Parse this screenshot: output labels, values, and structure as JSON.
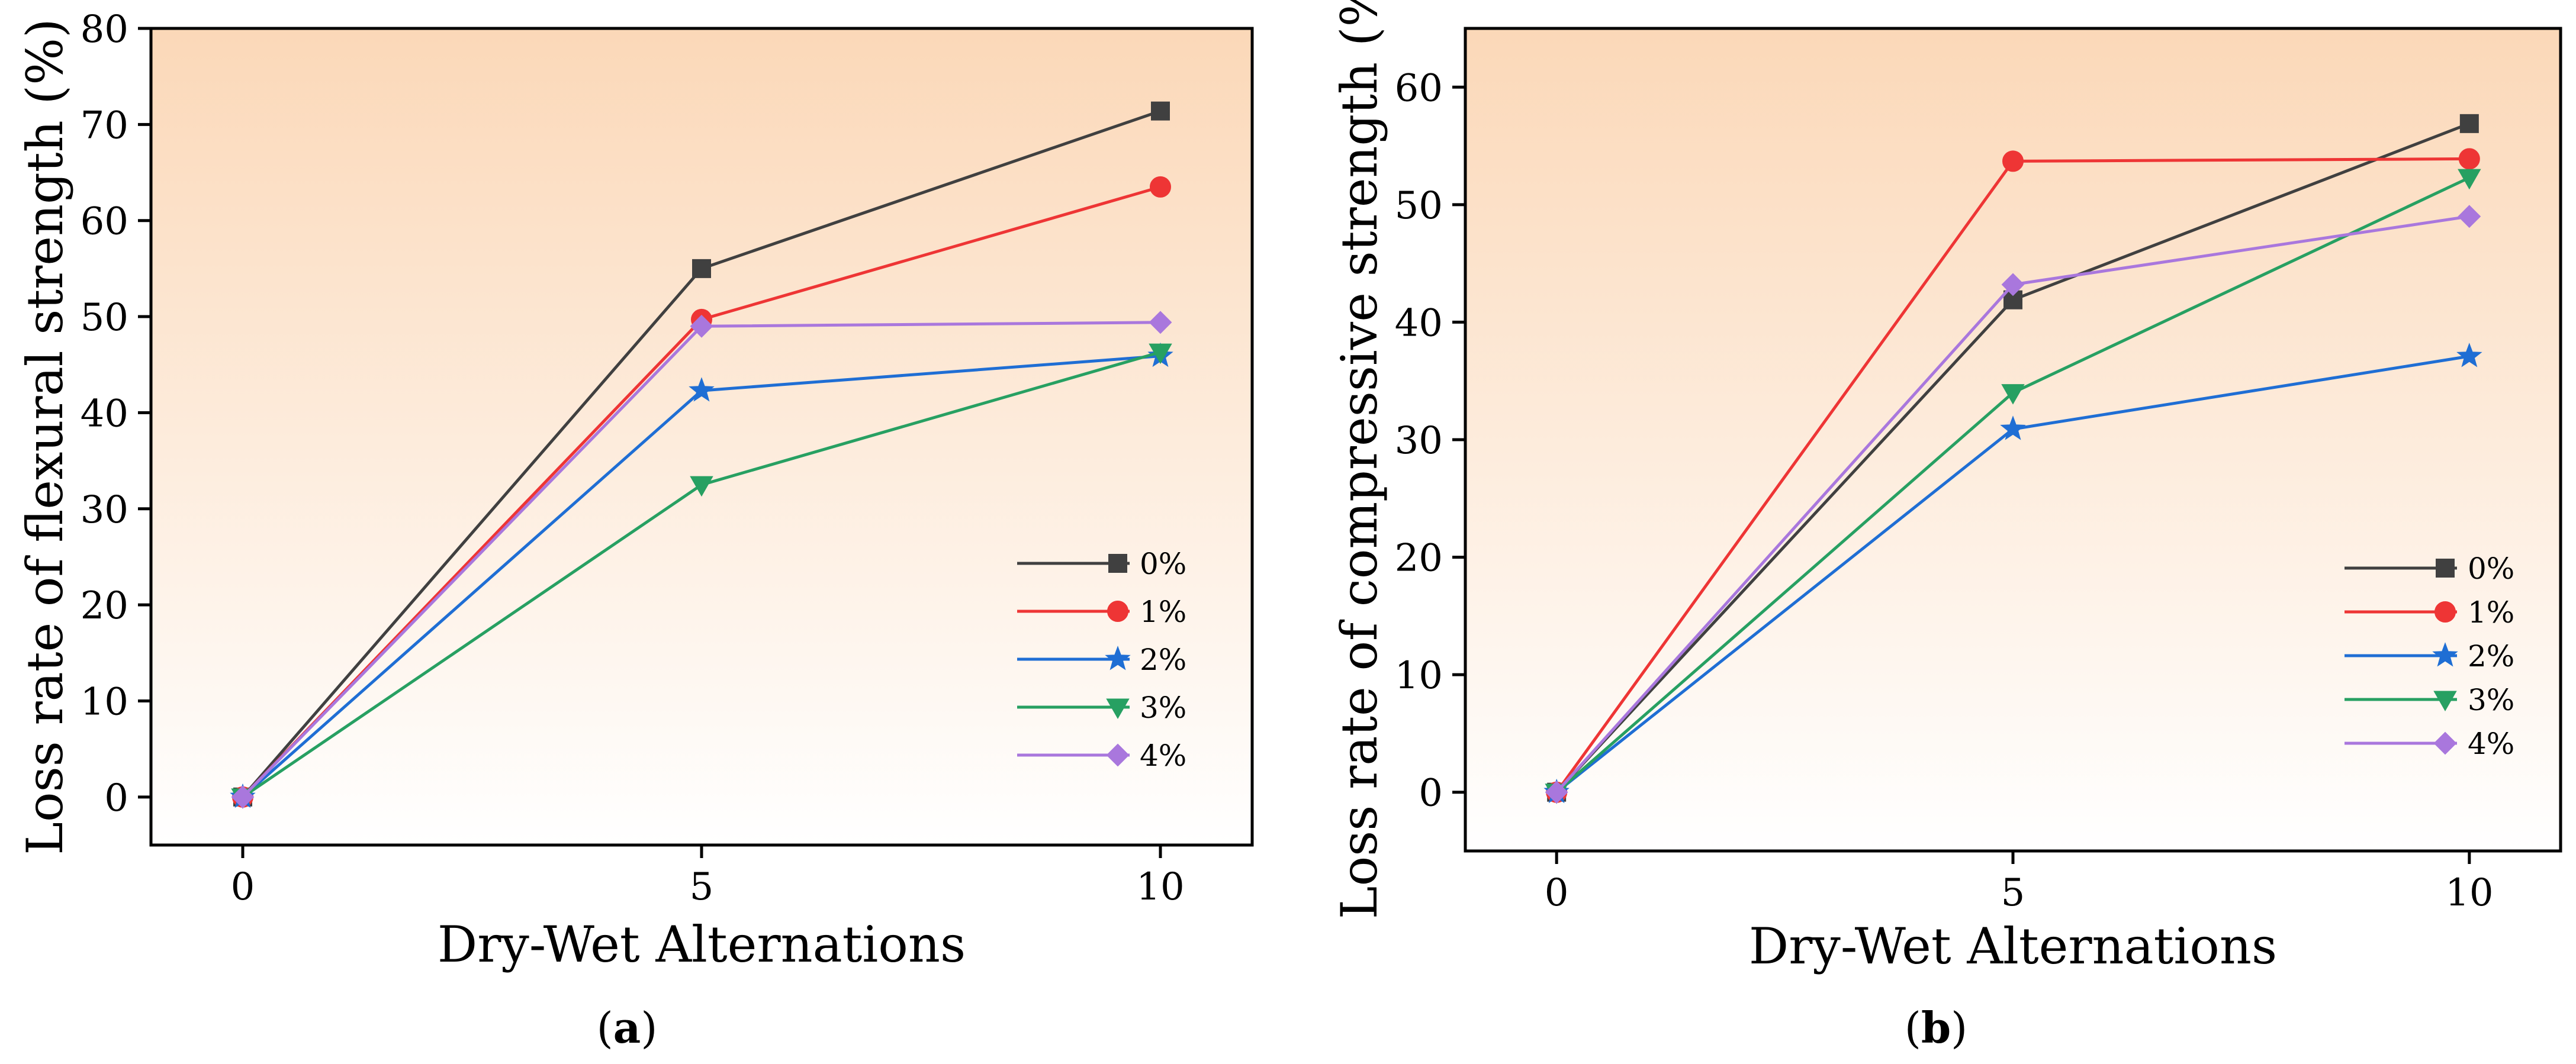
{
  "chart_data": [
    {
      "type": "line",
      "panel_label": "a",
      "xlabel": "Dry-Wet Alternations",
      "ylabel": "Loss rate of flexural strength (%)",
      "x": [
        0,
        5,
        10
      ],
      "xlim": [
        -1,
        11
      ],
      "ylim": [
        -5,
        80
      ],
      "xticks": [
        0,
        5,
        10
      ],
      "yticks": [
        0,
        10,
        20,
        30,
        40,
        50,
        60,
        70,
        80
      ],
      "grid": false,
      "legend_position": "bottom-right",
      "series": [
        {
          "name": "0%",
          "values": [
            0,
            55.0,
            71.4
          ],
          "color": "#404040",
          "marker": "square"
        },
        {
          "name": "1%",
          "values": [
            0,
            49.7,
            63.5
          ],
          "color": "#ee3535",
          "marker": "circle"
        },
        {
          "name": "2%",
          "values": [
            0,
            42.3,
            45.9
          ],
          "color": "#1f6ed4",
          "marker": "star"
        },
        {
          "name": "3%",
          "values": [
            0,
            32.5,
            46.3
          ],
          "color": "#27a062",
          "marker": "triangle-down"
        },
        {
          "name": "4%",
          "values": [
            0,
            49.0,
            49.4
          ],
          "color": "#a977dd",
          "marker": "diamond"
        }
      ]
    },
    {
      "type": "line",
      "panel_label": "b",
      "xlabel": "Dry-Wet Alternations",
      "ylabel": "Loss rate of compressive strength (%)",
      "x": [
        0,
        5,
        10
      ],
      "xlim": [
        -1,
        11
      ],
      "ylim": [
        -5,
        65
      ],
      "xticks": [
        0,
        5,
        10
      ],
      "yticks": [
        0,
        10,
        20,
        30,
        40,
        50,
        60
      ],
      "grid": false,
      "legend_position": "bottom-right",
      "series": [
        {
          "name": "0%",
          "values": [
            0,
            41.9,
            56.9
          ],
          "color": "#404040",
          "marker": "square"
        },
        {
          "name": "1%",
          "values": [
            0,
            53.7,
            53.9
          ],
          "color": "#ee3535",
          "marker": "circle"
        },
        {
          "name": "2%",
          "values": [
            0,
            30.9,
            37.1
          ],
          "color": "#1f6ed4",
          "marker": "star"
        },
        {
          "name": "3%",
          "values": [
            0,
            34.0,
            52.3
          ],
          "color": "#27a062",
          "marker": "triangle-down"
        },
        {
          "name": "4%",
          "values": [
            0,
            43.2,
            49.0
          ],
          "color": "#a977dd",
          "marker": "diamond"
        }
      ]
    }
  ]
}
